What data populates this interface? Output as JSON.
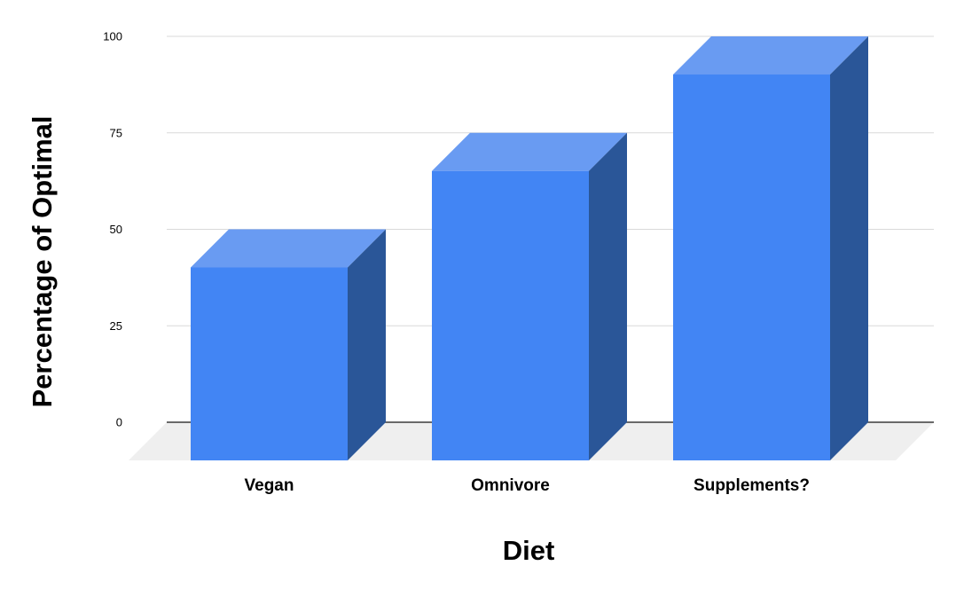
{
  "chart_data": {
    "type": "bar",
    "variant": "3d-column",
    "title": "",
    "xlabel": "Diet",
    "ylabel": "Percentage of Optimal",
    "categories": [
      "Vegan",
      "Omnivore",
      "Supplements?"
    ],
    "values": [
      50,
      75,
      100
    ],
    "yticks": [
      0,
      25,
      50,
      75,
      100
    ],
    "ylim": [
      0,
      100
    ],
    "grid": true,
    "legend": "none",
    "background": "#ffffff",
    "colors": {
      "bar_front": "#4285f4",
      "bar_top": "#699bf2",
      "bar_side": "#2a5698",
      "floor": "#efefef",
      "gridline": "#d9d9d9",
      "zero_line": "#3c3c3c",
      "text": "#000000"
    }
  }
}
